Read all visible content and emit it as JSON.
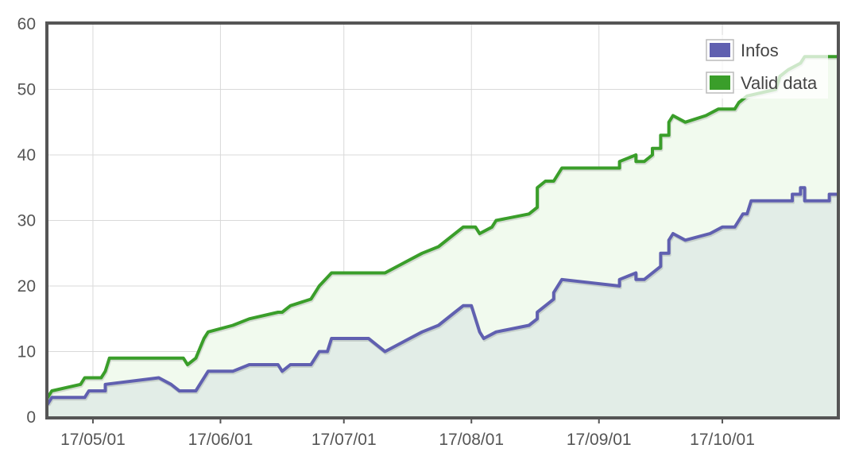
{
  "chart_data": {
    "type": "area",
    "title": "",
    "xlabel": "",
    "ylabel": "",
    "x_range": [
      "2017-04-20",
      "2017-10-29"
    ],
    "ylim": [
      0,
      60
    ],
    "y_ticks": [
      "0",
      "10",
      "20",
      "30",
      "40",
      "50",
      "60"
    ],
    "x_ticks": [
      {
        "date": "2017-05-01",
        "label": "17/05/01"
      },
      {
        "date": "2017-06-01",
        "label": "17/06/01"
      },
      {
        "date": "2017-07-01",
        "label": "17/07/01"
      },
      {
        "date": "2017-08-01",
        "label": "17/08/01"
      },
      {
        "date": "2017-09-01",
        "label": "17/09/01"
      },
      {
        "date": "2017-10-01",
        "label": "17/10/01"
      }
    ],
    "grid": true,
    "legend_position": "top-right",
    "series": [
      {
        "name": "Valid data",
        "line_color": "#3a9e2a",
        "fill_color": "#f1faee",
        "points": [
          [
            "2017-04-20",
            3
          ],
          [
            "2017-04-21",
            4
          ],
          [
            "2017-04-28",
            5
          ],
          [
            "2017-04-29",
            6
          ],
          [
            "2017-05-03",
            6
          ],
          [
            "2017-05-04",
            7
          ],
          [
            "2017-05-05",
            9
          ],
          [
            "2017-05-23",
            9
          ],
          [
            "2017-05-24",
            8
          ],
          [
            "2017-05-26",
            9
          ],
          [
            "2017-05-28",
            12
          ],
          [
            "2017-05-29",
            13
          ],
          [
            "2017-06-04",
            14
          ],
          [
            "2017-06-08",
            15
          ],
          [
            "2017-06-15",
            16
          ],
          [
            "2017-06-16",
            16
          ],
          [
            "2017-06-18",
            17
          ],
          [
            "2017-06-23",
            18
          ],
          [
            "2017-06-24",
            19
          ],
          [
            "2017-06-25",
            20
          ],
          [
            "2017-06-28",
            22
          ],
          [
            "2017-07-11",
            22
          ],
          [
            "2017-07-20",
            25
          ],
          [
            "2017-07-24",
            26
          ],
          [
            "2017-07-30",
            29
          ],
          [
            "2017-08-02",
            29
          ],
          [
            "2017-08-03",
            28
          ],
          [
            "2017-08-06",
            29
          ],
          [
            "2017-08-07",
            30
          ],
          [
            "2017-08-15",
            31
          ],
          [
            "2017-08-17",
            32
          ],
          [
            "2017-08-17",
            35
          ],
          [
            "2017-08-19",
            36
          ],
          [
            "2017-08-21",
            36
          ],
          [
            "2017-08-23",
            38
          ],
          [
            "2017-09-06",
            38
          ],
          [
            "2017-09-06",
            39
          ],
          [
            "2017-09-10",
            40
          ],
          [
            "2017-09-10",
            39
          ],
          [
            "2017-09-12",
            39
          ],
          [
            "2017-09-14",
            40
          ],
          [
            "2017-09-14",
            41
          ],
          [
            "2017-09-16",
            41
          ],
          [
            "2017-09-16",
            43
          ],
          [
            "2017-09-18",
            43
          ],
          [
            "2017-09-18",
            45
          ],
          [
            "2017-09-19",
            46
          ],
          [
            "2017-09-22",
            45
          ],
          [
            "2017-09-27",
            46
          ],
          [
            "2017-09-30",
            47
          ],
          [
            "2017-10-04",
            47
          ],
          [
            "2017-10-05",
            48
          ],
          [
            "2017-10-07",
            49
          ],
          [
            "2017-10-14",
            50
          ],
          [
            "2017-10-15",
            52
          ],
          [
            "2017-10-17",
            53
          ],
          [
            "2017-10-20",
            54
          ],
          [
            "2017-10-21",
            55
          ],
          [
            "2017-10-29",
            55
          ]
        ]
      },
      {
        "name": "Infos",
        "line_color": "#6060b0",
        "fill_color": "#e2ede7",
        "points": [
          [
            "2017-04-20",
            2
          ],
          [
            "2017-04-21",
            3
          ],
          [
            "2017-04-29",
            3
          ],
          [
            "2017-04-30",
            4
          ],
          [
            "2017-05-04",
            4
          ],
          [
            "2017-05-04",
            5
          ],
          [
            "2017-05-17",
            6
          ],
          [
            "2017-05-20",
            5
          ],
          [
            "2017-05-22",
            4
          ],
          [
            "2017-05-26",
            4
          ],
          [
            "2017-05-29",
            7
          ],
          [
            "2017-06-04",
            7
          ],
          [
            "2017-06-08",
            8
          ],
          [
            "2017-06-15",
            8
          ],
          [
            "2017-06-16",
            7
          ],
          [
            "2017-06-18",
            8
          ],
          [
            "2017-06-23",
            8
          ],
          [
            "2017-06-24",
            9
          ],
          [
            "2017-06-25",
            10
          ],
          [
            "2017-06-27",
            10
          ],
          [
            "2017-06-28",
            12
          ],
          [
            "2017-07-07",
            12
          ],
          [
            "2017-07-09",
            11
          ],
          [
            "2017-07-11",
            10
          ],
          [
            "2017-07-20",
            13
          ],
          [
            "2017-07-24",
            14
          ],
          [
            "2017-07-28",
            16
          ],
          [
            "2017-07-30",
            17
          ],
          [
            "2017-08-01",
            17
          ],
          [
            "2017-08-03",
            13
          ],
          [
            "2017-08-04",
            12
          ],
          [
            "2017-08-07",
            13
          ],
          [
            "2017-08-15",
            14
          ],
          [
            "2017-08-17",
            15
          ],
          [
            "2017-08-17",
            16
          ],
          [
            "2017-08-21",
            18
          ],
          [
            "2017-08-21",
            19
          ],
          [
            "2017-08-23",
            21
          ],
          [
            "2017-09-06",
            20
          ],
          [
            "2017-09-06",
            21
          ],
          [
            "2017-09-10",
            22
          ],
          [
            "2017-09-10",
            21
          ],
          [
            "2017-09-12",
            21
          ],
          [
            "2017-09-16",
            23
          ],
          [
            "2017-09-16",
            25
          ],
          [
            "2017-09-18",
            25
          ],
          [
            "2017-09-18",
            27
          ],
          [
            "2017-09-19",
            28
          ],
          [
            "2017-09-22",
            27
          ],
          [
            "2017-09-28",
            28
          ],
          [
            "2017-10-01",
            29
          ],
          [
            "2017-10-04",
            29
          ],
          [
            "2017-10-05",
            30
          ],
          [
            "2017-10-06",
            31
          ],
          [
            "2017-10-07",
            31
          ],
          [
            "2017-10-08",
            33
          ],
          [
            "2017-10-18",
            33
          ],
          [
            "2017-10-18",
            34
          ],
          [
            "2017-10-20",
            34
          ],
          [
            "2017-10-20",
            35
          ],
          [
            "2017-10-21",
            35
          ],
          [
            "2017-10-21",
            33
          ],
          [
            "2017-10-27",
            33
          ],
          [
            "2017-10-27",
            34
          ],
          [
            "2017-10-29",
            34
          ]
        ]
      }
    ]
  }
}
